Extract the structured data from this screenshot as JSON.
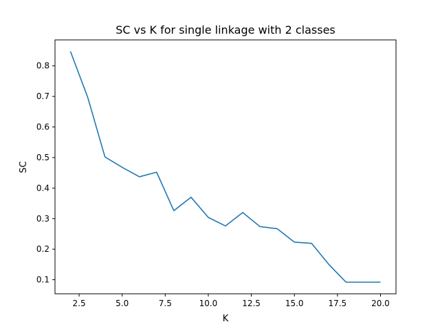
{
  "chart_data": {
    "type": "line",
    "title": "SC vs K for single linkage with 2 classes",
    "xlabel": "K",
    "ylabel": "SC",
    "xlim": [
      1.1,
      20.9
    ],
    "ylim": [
      0.054,
      0.885
    ],
    "xticks": [
      2.5,
      5.0,
      7.5,
      10.0,
      12.5,
      15.0,
      17.5,
      20.0
    ],
    "xtick_labels": [
      "2.5",
      "5.0",
      "7.5",
      "10.0",
      "12.5",
      "15.0",
      "17.5",
      "20.0"
    ],
    "yticks": [
      0.1,
      0.2,
      0.3,
      0.4,
      0.5,
      0.6,
      0.7,
      0.8
    ],
    "ytick_labels": [
      "0.1",
      "0.2",
      "0.3",
      "0.4",
      "0.5",
      "0.6",
      "0.7",
      "0.8"
    ],
    "grid": false,
    "series": [
      {
        "color": "#1f77b4",
        "x": [
          2,
          3,
          4,
          5,
          6,
          7,
          8,
          9,
          10,
          11,
          12,
          13,
          14,
          15,
          16,
          17,
          18,
          19,
          20
        ],
        "y": [
          0.847,
          0.697,
          0.502,
          0.468,
          0.437,
          0.452,
          0.326,
          0.37,
          0.304,
          0.276,
          0.32,
          0.274,
          0.267,
          0.223,
          0.219,
          0.15,
          0.092,
          0.092,
          0.092
        ]
      }
    ]
  }
}
